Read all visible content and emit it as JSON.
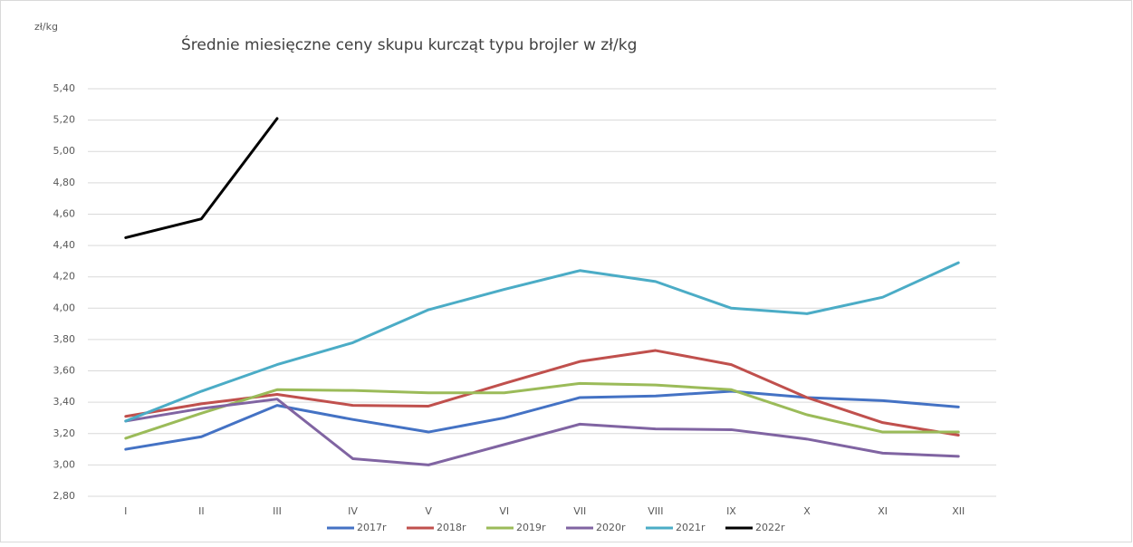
{
  "chart_data": {
    "type": "line",
    "title": "Średnie miesięczne ceny skupu kurcząt typu brojler w zł/kg",
    "y_axis_label": "zł/kg",
    "categories": [
      "I",
      "II",
      "III",
      "IV",
      "V",
      "VI",
      "VII",
      "VIII",
      "IX",
      "X",
      "XI",
      "XII"
    ],
    "series": [
      {
        "name": "2017r",
        "color": "#4472c4",
        "values": [
          3.1,
          3.18,
          3.38,
          3.29,
          3.21,
          3.3,
          3.43,
          3.44,
          3.47,
          3.43,
          3.41,
          3.37
        ]
      },
      {
        "name": "2018r",
        "color": "#c0504d",
        "values": [
          3.31,
          3.39,
          3.45,
          3.38,
          3.375,
          3.52,
          3.66,
          3.73,
          3.64,
          3.43,
          3.27,
          3.19
        ]
      },
      {
        "name": "2019r",
        "color": "#9bbb59",
        "values": [
          3.17,
          3.33,
          3.48,
          3.475,
          3.46,
          3.46,
          3.52,
          3.51,
          3.48,
          3.32,
          3.21,
          3.21
        ]
      },
      {
        "name": "2020r",
        "color": "#8064a2",
        "values": [
          3.28,
          3.36,
          3.42,
          3.04,
          3.0,
          3.13,
          3.26,
          3.23,
          3.225,
          3.165,
          3.075,
          3.055
        ]
      },
      {
        "name": "2021r",
        "color": "#4bacc6",
        "values": [
          3.28,
          3.47,
          3.64,
          3.78,
          3.99,
          4.12,
          4.24,
          4.17,
          4.0,
          3.965,
          4.07,
          4.29
        ]
      },
      {
        "name": "2022r",
        "color": "#000000",
        "values": [
          4.45,
          4.57,
          5.21,
          null,
          null,
          null,
          null,
          null,
          null,
          null,
          null,
          null
        ]
      }
    ],
    "ylim": [
      2.8,
      5.4
    ],
    "yticks": [
      {
        "value": 2.8,
        "label": "2,80"
      },
      {
        "value": 3.0,
        "label": "3,00"
      },
      {
        "value": 3.2,
        "label": "3,20"
      },
      {
        "value": 3.4,
        "label": "3,40"
      },
      {
        "value": 3.6,
        "label": "3,60"
      },
      {
        "value": 3.8,
        "label": "3,80"
      },
      {
        "value": 4.0,
        "label": "4,00"
      },
      {
        "value": 4.2,
        "label": "4,20"
      },
      {
        "value": 4.4,
        "label": "4,40"
      },
      {
        "value": 4.6,
        "label": "4,60"
      },
      {
        "value": 4.8,
        "label": "4,80"
      },
      {
        "value": 5.0,
        "label": "5,00"
      },
      {
        "value": 5.2,
        "label": "5,20"
      },
      {
        "value": 5.4,
        "label": "5,40"
      }
    ],
    "grid": true,
    "legend": "bottom"
  }
}
